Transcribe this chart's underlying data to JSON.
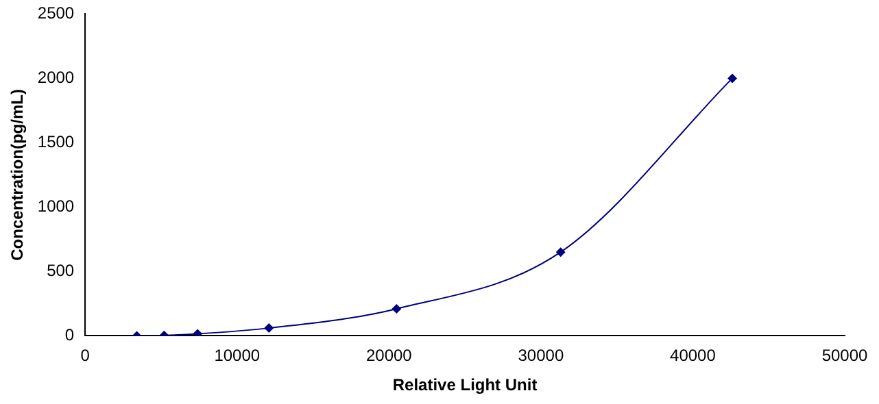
{
  "chart_data": {
    "type": "line",
    "xlabel": "Relative Light Unit",
    "ylabel": "Concentration(pg/mL)",
    "x": [
      3400,
      5200,
      7400,
      12100,
      20500,
      31300,
      42600
    ],
    "series": [
      {
        "color": "#00007f",
        "values": [
          0,
          3,
          15,
          60,
          210,
          650,
          2000
        ]
      }
    ],
    "xlim": [
      0,
      50000
    ],
    "xticks": [
      0,
      10000,
      20000,
      30000,
      40000,
      50000
    ],
    "ylim": [
      0,
      2500
    ],
    "yticks": [
      0,
      500,
      1000,
      1500,
      2000,
      2500
    ],
    "grid": false,
    "legend": false,
    "marker": "diamond",
    "line_style": "solid"
  }
}
